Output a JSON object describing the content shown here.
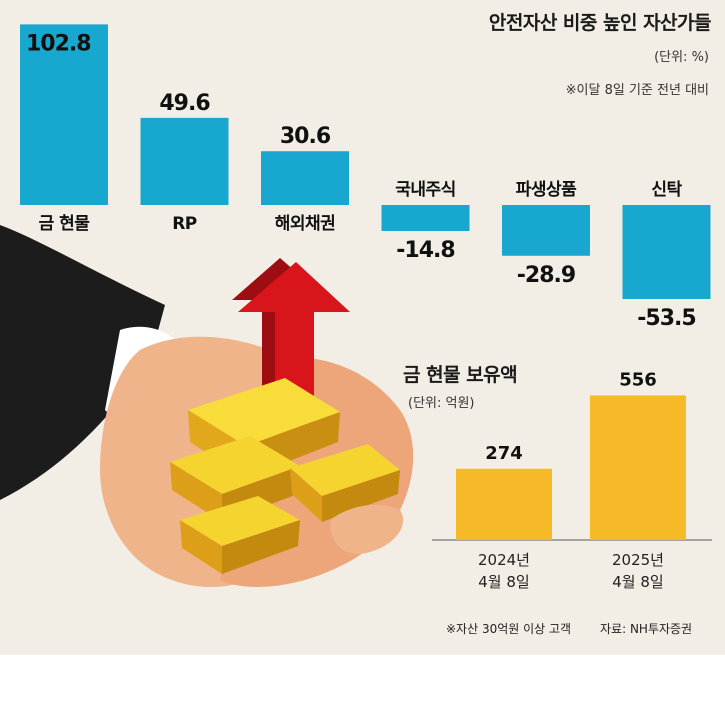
{
  "colors": {
    "background": "#f2eee6",
    "main_bar": "#18a8cf",
    "sub_bar": "#f6b928",
    "arrow": "#d9151c",
    "gold": "#f4d22a"
  },
  "illustration": "hands holding gold bars with red up arrow",
  "chart_data": [
    {
      "type": "bar",
      "title": "안전자산 비중 높인 자산가들",
      "unit": "(단위: %)",
      "note": "※이달 8일 기준 전년 대비",
      "categories": [
        "금 현물",
        "RP",
        "해외채권",
        "국내주식",
        "파생상품",
        "신탁"
      ],
      "values": [
        102.8,
        49.6,
        30.6,
        -14.8,
        -28.9,
        -53.5
      ],
      "value_labels": [
        "102.8",
        "49.6",
        "30.6",
        "-14.8",
        "-28.9",
        "-53.5"
      ],
      "ylim": [
        -60,
        105
      ],
      "grid": false
    },
    {
      "type": "bar",
      "title": "금 현물 보유액",
      "unit": "(단위: 억원)",
      "categories": [
        [
          "2024년",
          "4월 8일"
        ],
        [
          "2025년",
          "4월 8일"
        ]
      ],
      "values": [
        274,
        556
      ],
      "value_labels": [
        "274",
        "556"
      ],
      "ylim": [
        0,
        600
      ],
      "grid": false
    }
  ],
  "footnote": "※자산 30억원 이상 고객",
  "source": "자료: NH투자증권"
}
